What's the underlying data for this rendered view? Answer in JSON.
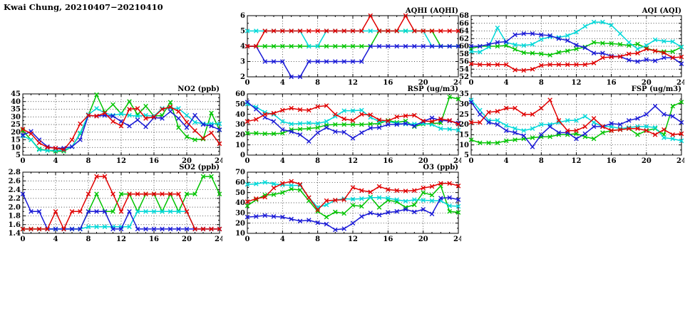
{
  "page": {
    "title": "Kwai Chung, 20210407−20210410"
  },
  "colors": {
    "red": "#e00000",
    "green": "#00c400",
    "blue": "#1a1ad6",
    "cyan": "#00d8d8"
  },
  "chart_data": [
    {
      "id": "aqhi",
      "title": "AQHI (AQHI)",
      "type": "line",
      "marker": "x",
      "x_range": [
        0,
        24
      ],
      "x_ticks": [
        0,
        4,
        8,
        12,
        16,
        20,
        24
      ],
      "y_range": [
        2,
        6
      ],
      "y_ticks": [
        "2",
        "3",
        "4",
        "5",
        "6"
      ],
      "series": [
        {
          "name": "green",
          "color": "#00c400",
          "values": [
            4,
            4,
            4,
            4,
            4,
            4,
            4,
            4,
            4,
            4,
            4,
            4,
            4,
            4,
            4,
            5,
            5,
            5,
            5,
            5,
            5,
            5,
            4,
            4,
            4
          ]
        },
        {
          "name": "cyan",
          "color": "#00d8d8",
          "values": [
            5,
            5,
            5,
            5,
            5,
            5,
            5,
            4,
            4,
            5,
            5,
            5,
            5,
            5,
            5,
            5,
            5,
            5,
            5,
            5,
            5,
            4,
            4,
            4,
            4
          ]
        },
        {
          "name": "blue",
          "color": "#1a1ad6",
          "values": [
            4,
            4,
            3,
            3,
            3,
            2,
            2,
            3,
            3,
            3,
            3,
            3,
            3,
            3,
            4,
            4,
            4,
            4,
            4,
            4,
            4,
            4,
            4,
            4,
            4
          ]
        },
        {
          "name": "red",
          "color": "#e00000",
          "values": [
            4,
            4,
            5,
            5,
            5,
            5,
            5,
            5,
            5,
            5,
            5,
            5,
            5,
            5,
            6,
            5,
            5,
            5,
            6,
            5,
            5,
            5,
            5,
            5,
            5
          ]
        }
      ]
    },
    {
      "id": "aqi",
      "title": "AQI (AQI)",
      "type": "line",
      "marker": "x",
      "x_range": [
        0,
        24
      ],
      "x_ticks": [
        0,
        4,
        8,
        12,
        16,
        20,
        24
      ],
      "y_range": [
        52,
        68
      ],
      "y_ticks": [
        "52",
        "54",
        "56",
        "58",
        "60",
        "62",
        "64",
        "66",
        "68"
      ],
      "series": [
        {
          "name": "green",
          "color": "#00c400",
          "values": [
            59.4,
            60,
            60,
            60,
            60.2,
            59.2,
            58.3,
            58.2,
            58,
            57.7,
            58.4,
            58.8,
            59.3,
            59.8,
            61,
            60.8,
            60.7,
            60.5,
            60.2,
            60.6,
            59.5,
            58.8,
            58.6,
            58.6,
            59.8
          ]
        },
        {
          "name": "cyan",
          "color": "#00d8d8",
          "values": [
            58.6,
            58.5,
            59.8,
            64.8,
            61,
            60.4,
            60.2,
            60.5,
            61.8,
            62.5,
            62.3,
            62.8,
            63.7,
            65.2,
            66.3,
            66.3,
            65.5,
            63.3,
            61,
            59.3,
            60.2,
            61.7,
            61.3,
            61.2,
            59.8
          ]
        },
        {
          "name": "blue",
          "color": "#1a1ad6",
          "values": [
            60,
            60,
            60.5,
            61,
            61.2,
            63,
            63.3,
            63.3,
            63,
            62.8,
            62,
            61.5,
            60.3,
            59.6,
            58.2,
            58.2,
            57.4,
            57.3,
            56.4,
            56,
            56.5,
            56.2,
            57,
            57,
            55.4
          ]
        },
        {
          "name": "red",
          "color": "#e00000",
          "values": [
            55.4,
            55.2,
            55.2,
            55.2,
            55.2,
            53.8,
            53.7,
            54,
            55,
            55.2,
            55.2,
            55.2,
            55.2,
            55.2,
            55.6,
            57,
            57.2,
            57.3,
            58,
            58.2,
            59.3,
            58.8,
            58.3,
            57,
            57.2
          ]
        }
      ]
    },
    {
      "id": "no2",
      "title": "NO2 (ppb)",
      "type": "line",
      "marker": "x",
      "x_range": [
        0,
        24
      ],
      "x_ticks": [
        0,
        4,
        8,
        12,
        16,
        20,
        24
      ],
      "y_range": [
        5,
        45
      ],
      "y_ticks": [
        "5",
        "10",
        "15",
        "20",
        "25",
        "30",
        "35",
        "40",
        "45"
      ],
      "series": [
        {
          "name": "green",
          "color": "#00c400",
          "values": [
            21,
            15,
            9,
            8,
            7.5,
            7.5,
            10.5,
            19,
            31,
            44.5,
            33,
            38,
            32,
            40,
            31.5,
            37,
            30.5,
            31,
            39.5,
            23,
            17,
            15,
            15.5,
            32.5,
            21.5
          ]
        },
        {
          "name": "cyan",
          "color": "#00d8d8",
          "values": [
            17.5,
            15,
            8.5,
            8,
            8,
            8,
            10.5,
            19.5,
            31.5,
            35.5,
            32.5,
            31,
            32,
            31,
            30.5,
            31,
            30.5,
            35.5,
            35.5,
            35.5,
            31,
            26.5,
            25.5,
            25.5,
            25.5
          ]
        },
        {
          "name": "blue",
          "color": "#1a1ad6",
          "values": [
            18,
            20.5,
            15,
            10.5,
            9.5,
            9.5,
            10.5,
            15,
            31,
            30.5,
            31,
            30.5,
            27,
            24,
            28,
            23.5,
            29.5,
            29,
            33.5,
            29,
            23,
            31,
            25,
            24,
            21.5
          ]
        },
        {
          "name": "red",
          "color": "#e00000",
          "values": [
            22,
            19,
            13,
            10,
            9.5,
            8.5,
            15,
            25.5,
            31,
            30.5,
            32.5,
            27,
            24,
            35,
            35.5,
            29,
            30,
            35,
            36.5,
            33.5,
            26.5,
            21,
            16,
            19.5,
            12.5
          ]
        }
      ]
    },
    {
      "id": "rsp",
      "title": "RSP (ug/m3)",
      "type": "line",
      "marker": "x",
      "x_range": [
        0,
        24
      ],
      "x_ticks": [
        0,
        4,
        8,
        12,
        16,
        20,
        24
      ],
      "y_range": [
        0,
        60
      ],
      "y_ticks": [
        "0",
        "10",
        "20",
        "30",
        "40",
        "50",
        "60"
      ],
      "series": [
        {
          "name": "green",
          "color": "#00c400",
          "values": [
            21.5,
            21.5,
            21,
            21,
            21.5,
            25,
            25.5,
            26,
            27,
            29.5,
            30,
            30,
            30,
            30,
            30.5,
            31,
            34,
            32,
            33.5,
            28,
            30.5,
            31,
            31.5,
            57,
            55
          ]
        },
        {
          "name": "cyan",
          "color": "#00d8d8",
          "values": [
            50,
            47,
            42,
            40,
            33,
            30.5,
            31,
            31.5,
            31,
            33,
            38,
            43.5,
            43.5,
            44,
            37,
            33,
            33,
            31,
            30.5,
            30.5,
            31,
            30,
            26,
            25.5,
            24.5
          ]
        },
        {
          "name": "blue",
          "color": "#1a1ad6",
          "values": [
            52,
            45,
            37,
            33,
            25,
            23,
            20,
            13.5,
            22,
            27,
            23,
            22.5,
            16.5,
            22,
            26.5,
            27,
            30,
            30,
            31,
            28.5,
            33,
            36.5,
            34,
            33.5,
            31.5
          ]
        },
        {
          "name": "red",
          "color": "#e00000",
          "values": [
            33,
            35,
            40,
            41,
            44,
            46,
            44.5,
            44,
            47.5,
            48.5,
            40,
            35.5,
            34,
            40,
            39.5,
            34.5,
            33.5,
            37.5,
            38.5,
            39,
            33.5,
            33,
            35.5,
            34,
            30.5
          ]
        }
      ]
    },
    {
      "id": "fsp",
      "title": "FSP (ug/m3)",
      "type": "line",
      "marker": "x",
      "x_range": [
        0,
        24
      ],
      "x_ticks": [
        0,
        4,
        8,
        12,
        16,
        20,
        24
      ],
      "y_range": [
        5,
        35
      ],
      "y_ticks": [
        "5",
        "10",
        "15",
        "20",
        "25",
        "30",
        "35"
      ],
      "series": [
        {
          "name": "green",
          "color": "#00c400",
          "values": [
            12.5,
            11,
            11,
            11,
            12,
            12.5,
            13,
            13.5,
            14,
            14,
            15,
            15,
            15.5,
            14,
            13,
            16,
            17,
            17.5,
            18,
            15,
            17,
            18,
            15,
            29,
            31
          ]
        },
        {
          "name": "cyan",
          "color": "#00d8d8",
          "values": [
            32,
            27,
            22,
            22,
            19.5,
            18,
            17,
            18,
            20,
            20,
            21,
            22,
            22,
            24,
            21,
            19,
            19,
            18,
            18.5,
            19,
            19,
            18.5,
            13.5,
            13,
            12
          ]
        },
        {
          "name": "blue",
          "color": "#1a1ad6",
          "values": [
            31,
            25,
            21,
            20,
            17,
            16,
            14.5,
            9,
            15,
            19,
            16,
            16,
            13,
            15.5,
            19,
            19,
            20.5,
            20,
            22,
            23,
            25,
            29,
            25,
            24,
            21
          ]
        },
        {
          "name": "red",
          "color": "#e00000",
          "values": [
            21,
            21,
            26,
            26.5,
            28,
            28,
            25,
            25,
            28,
            32,
            22,
            17,
            17,
            19,
            23,
            19,
            17,
            17.5,
            18,
            18,
            17,
            15,
            17.5,
            15,
            15.5
          ]
        }
      ]
    },
    {
      "id": "so2",
      "title": "SO2 (ppb)",
      "type": "line",
      "marker": "x",
      "x_range": [
        0,
        24
      ],
      "x_ticks": [
        0,
        4,
        8,
        12,
        16,
        20,
        24
      ],
      "y_range": [
        1.4,
        2.8
      ],
      "y_ticks": [
        "1.4",
        "1.6",
        "1.8",
        "2.0",
        "2.2",
        "2.4",
        "2.6",
        "2.8"
      ],
      "series": [
        {
          "name": "green",
          "color": "#00c400",
          "values": [
            1.5,
            1.5,
            1.5,
            1.5,
            1.5,
            1.5,
            1.5,
            1.5,
            1.9,
            2.3,
            1.9,
            1.9,
            2.3,
            2.3,
            1.9,
            2.3,
            2.3,
            1.9,
            2.3,
            1.9,
            2.3,
            2.3,
            2.7,
            2.7,
            2.3
          ]
        },
        {
          "name": "cyan",
          "color": "#00d8d8",
          "values": [
            1.5,
            1.5,
            1.5,
            1.5,
            1.5,
            1.5,
            1.5,
            1.5,
            1.55,
            1.55,
            1.55,
            1.55,
            1.55,
            1.55,
            1.9,
            1.9,
            1.9,
            1.9,
            1.9,
            1.9,
            1.9,
            1.5,
            1.5,
            1.5,
            1.5
          ]
        },
        {
          "name": "blue",
          "color": "#1a1ad6",
          "values": [
            2.3,
            1.9,
            1.9,
            1.5,
            1.5,
            1.5,
            1.5,
            1.5,
            1.9,
            1.9,
            1.9,
            1.5,
            1.5,
            1.9,
            1.5,
            1.5,
            1.5,
            1.5,
            1.5,
            1.5,
            1.5,
            1.5,
            1.5,
            1.5,
            1.5
          ]
        },
        {
          "name": "red",
          "color": "#e00000",
          "values": [
            1.5,
            1.5,
            1.5,
            1.5,
            1.9,
            1.5,
            1.9,
            1.9,
            2.3,
            2.7,
            2.7,
            2.3,
            1.9,
            2.3,
            2.3,
            2.3,
            2.3,
            2.3,
            2.3,
            2.3,
            1.9,
            1.5,
            1.5,
            1.5,
            1.5
          ]
        }
      ]
    },
    {
      "id": "o3",
      "title": "O3 (ppb)",
      "type": "line",
      "marker": "x",
      "x_range": [
        0,
        24
      ],
      "x_ticks": [
        0,
        4,
        8,
        12,
        16,
        20,
        24
      ],
      "y_range": [
        10,
        70
      ],
      "y_ticks": [
        "10",
        "20",
        "30",
        "40",
        "50",
        "60",
        "70"
      ],
      "series": [
        {
          "name": "green",
          "color": "#00c400",
          "values": [
            37,
            43,
            47.5,
            48,
            50,
            53.5,
            52.5,
            42,
            31.5,
            26,
            31,
            29.5,
            37.5,
            36.5,
            45.5,
            35.5,
            42.5,
            41,
            35.5,
            38,
            50,
            47.5,
            56.5,
            31.5,
            30.5
          ]
        },
        {
          "name": "cyan",
          "color": "#00d8d8",
          "values": [
            58,
            58.5,
            60,
            58.5,
            57.5,
            57,
            57,
            45,
            35.5,
            38,
            42.5,
            44,
            43.5,
            44,
            45,
            45,
            44.5,
            43,
            41.5,
            43,
            42.5,
            42,
            42,
            37,
            36.5
          ]
        },
        {
          "name": "blue",
          "color": "#1a1ad6",
          "values": [
            26,
            26.5,
            27.5,
            26.5,
            26,
            24,
            22,
            23,
            20.5,
            19,
            13.5,
            14.5,
            20,
            26.5,
            30,
            28,
            30.5,
            31.5,
            33.5,
            31,
            33.5,
            29,
            44.5,
            45,
            43
          ]
        },
        {
          "name": "red",
          "color": "#e00000",
          "values": [
            41,
            44,
            45.5,
            54.5,
            59,
            61,
            58,
            45,
            33,
            42,
            42.5,
            43,
            55,
            52,
            50.5,
            56,
            53,
            52,
            51.5,
            52,
            54.5,
            56,
            59,
            59,
            56.5
          ]
        }
      ]
    }
  ]
}
